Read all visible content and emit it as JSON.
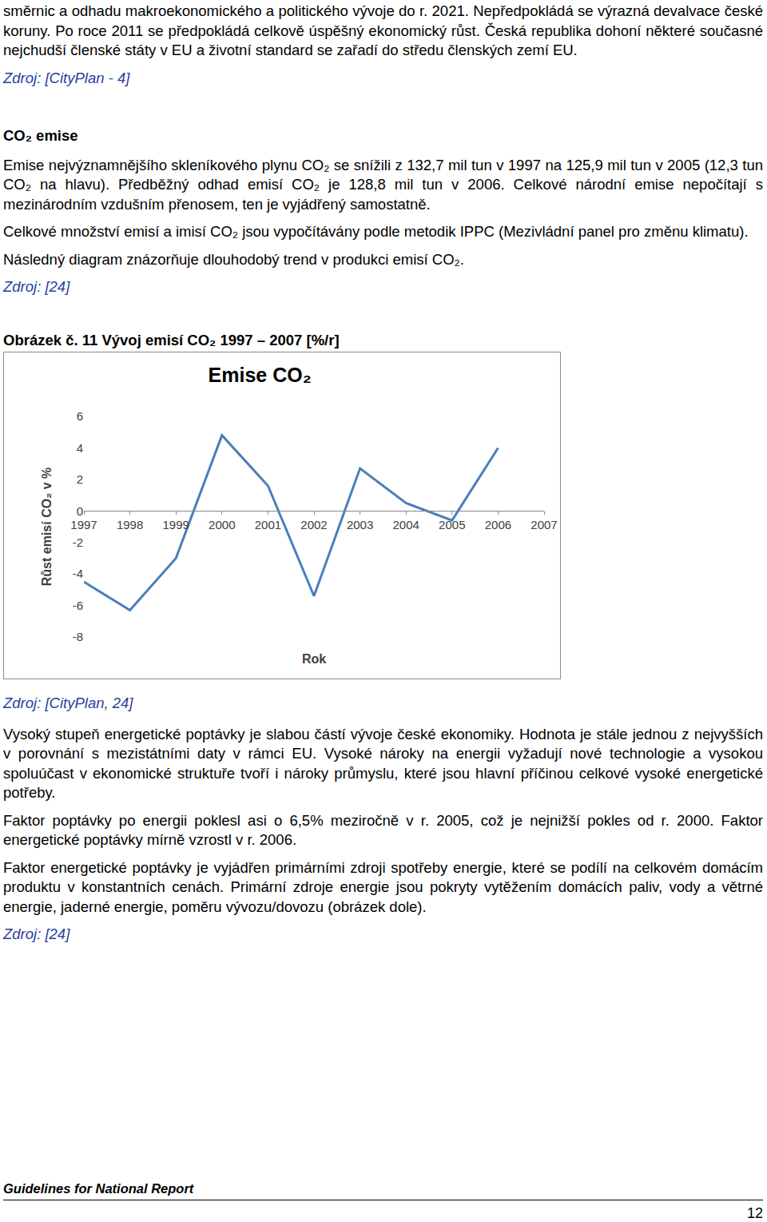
{
  "before": [
    {
      "kind": "p",
      "text": "směrnic a odhadu makroekonomického a politického vývoje do r. 2021. Nepředpokládá se výrazná devalvace české koruny. Po roce 2011 se předpokládá celkově úspěšný ekonomický růst. Česká republika dohoní některé současné nejchudší členské státy v EU a životní standard se zařadí do středu členských zemí EU."
    },
    {
      "kind": "source",
      "text": "Zdroj: [CityPlan - 4]"
    },
    {
      "kind": "heading",
      "text": "CO₂ emise"
    },
    {
      "kind": "p",
      "text": "Emise nejvýznamnějšího skleníkového plynu CO₂ se snížili z 132,7 mil tun v 1997 na 125,9 mil tun v 2005 (12,3 tun CO₂ na hlavu). Předběžný odhad emisí CO₂ je 128,8 mil tun v 2006. Celkové národní emise nepočítají s mezinárodním vzdušním přenosem, ten je vyjádřený samostatně."
    },
    {
      "kind": "p",
      "text": "Celkové množství emisí a imisí CO₂ jsou vypočítávány podle metodik IPPC (Mezivládní panel pro změnu klimatu)."
    },
    {
      "kind": "p",
      "text": "Následný diagram znázorňuje dlouhodobý trend v produkci emisí CO₂."
    },
    {
      "kind": "source",
      "text": "Zdroj: [24]"
    },
    {
      "kind": "caption",
      "text": "Obrázek č. 11 Vývoj emisí CO₂ 1997 – 2007 [%/r]"
    }
  ],
  "chart_data": {
    "type": "line",
    "title": "Emise CO₂",
    "x_label": "Rok",
    "y_label": "Růst emisí CO₂ v %",
    "categories": [
      "1997",
      "1998",
      "1999",
      "2000",
      "2001",
      "2002",
      "2003",
      "2004",
      "2005",
      "2006",
      "2007"
    ],
    "values": [
      -4.5,
      -6.3,
      -3.0,
      4.8,
      1.6,
      -5.4,
      2.7,
      0.5,
      -0.6,
      4.0,
      null
    ],
    "color": "#4a7ebb",
    "ylim": [
      -8,
      6
    ],
    "yticks": [
      -8,
      -6,
      -4,
      -2,
      0,
      2,
      4,
      6
    ],
    "grid": false
  },
  "after": [
    {
      "kind": "source",
      "text": "Zdroj: [CityPlan, 24]"
    },
    {
      "kind": "p",
      "text": "Vysoký stupeň energetické poptávky je slabou částí vývoje české ekonomiky. Hodnota je stále jednou z nejvyšších v porovnání s mezistátními daty v rámci EU. Vysoké nároky na energii vyžadují nové technologie a vysokou spoluúčast v ekonomické struktuře tvoří i nároky průmyslu, které jsou hlavní příčinou celkové vysoké energetické potřeby."
    },
    {
      "kind": "p",
      "text": "Faktor poptávky po energii poklesl asi o 6,5% meziročně v r. 2005, což je nejnižší pokles od r. 2000. Faktor energetické poptávky mírně vzrostl v r. 2006."
    },
    {
      "kind": "p",
      "text": "Faktor energetické poptávky je vyjádřen primárními zdroji spotřeby energie, které se podílí na celkovém domácím produktu v konstantních cenách. Primární zdroje energie jsou pokryty vytěžením domácích paliv, vody a větrné energie, jaderné energie, poměru vývozu/dovozu (obrázek dole)."
    },
    {
      "kind": "source",
      "text": "Zdroj: [24]"
    }
  ],
  "footer": {
    "text": "Guidelines for National Report",
    "page": "12"
  }
}
